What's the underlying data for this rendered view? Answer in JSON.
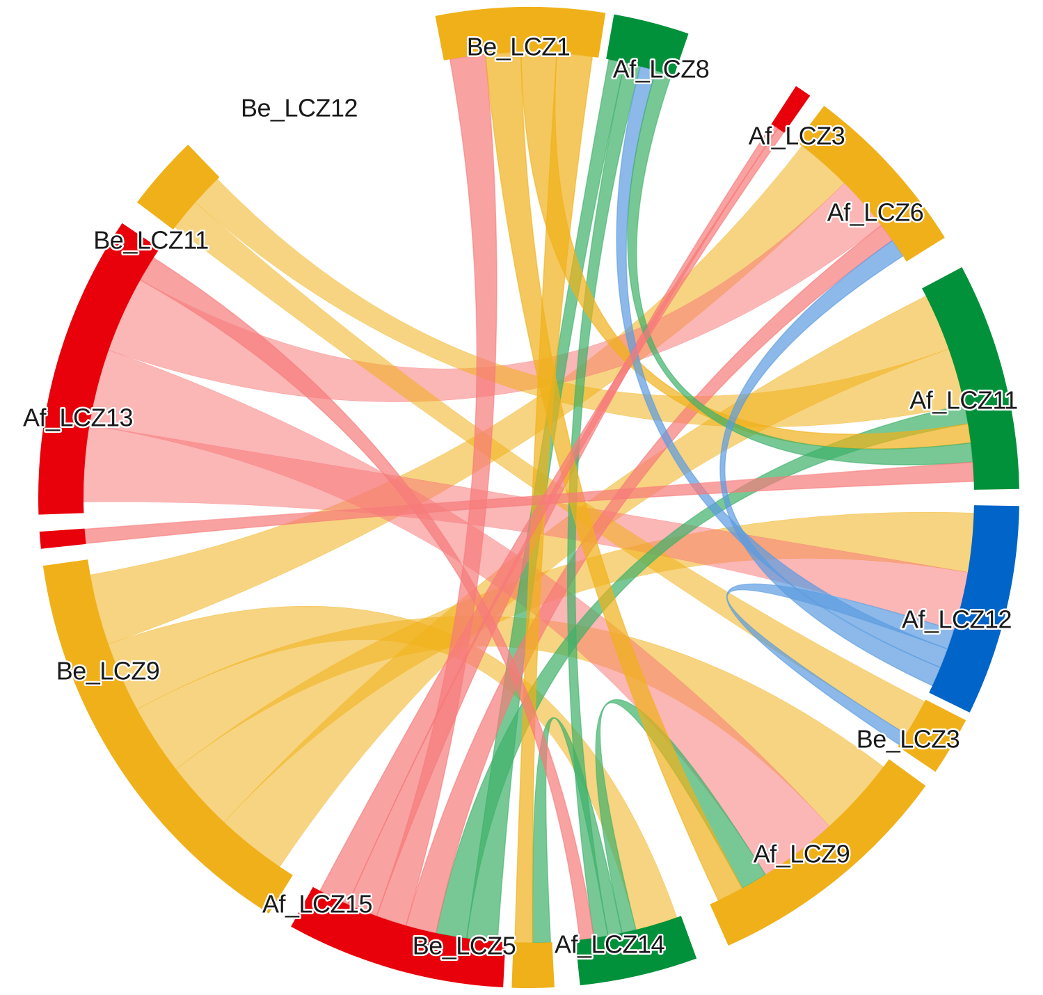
{
  "colors": {
    "red": "#e8000b",
    "green": "#00913a",
    "blue": "#0064c8",
    "yellow": "#f0b019"
  },
  "segments": [
    {
      "id": "Be_LCZ1",
      "label": "Be_LCZ1",
      "color": "#f0b019"
    },
    {
      "id": "Af_LCZ8",
      "label": "Af_LCZ8",
      "color": "#00913a"
    },
    {
      "id": "Af_LCZ3",
      "label": "Af_LCZ3",
      "color": "#e8000b"
    },
    {
      "id": "Af_LCZ6",
      "label": "Af_LCZ6",
      "color": "#f0b019"
    },
    {
      "id": "Af_LCZ11",
      "label": "Af_LCZ11",
      "color": "#00913a"
    },
    {
      "id": "Af_LCZ12",
      "label": "Af_LCZ12",
      "color": "#0064c8"
    },
    {
      "id": "Be_LCZ3",
      "label": "Be_LCZ3",
      "color": "#f0b019"
    },
    {
      "id": "Af_LCZ9",
      "label": "Af_LCZ9",
      "color": "#f0b019"
    },
    {
      "id": "Af_LCZ14",
      "label": "Af_LCZ14",
      "color": "#00913a"
    },
    {
      "id": "Be_LCZ5",
      "label": "Be_LCZ5",
      "color": "#f0b019"
    },
    {
      "id": "Af_LCZ15",
      "label": "Af_LCZ15",
      "color": "#e8000b"
    },
    {
      "id": "Be_LCZ9",
      "label": "Be_LCZ9",
      "color": "#f0b019"
    },
    {
      "id": "Af_LCZ13",
      "label": "Af_LCZ13",
      "color": "#e8000b"
    },
    {
      "id": "Be_LCZ11",
      "label": "Be_LCZ11",
      "color": "#e8000b"
    },
    {
      "id": "Be_LCZ12",
      "label": "Be_LCZ12",
      "color": "#f0b019"
    }
  ],
  "flows": [
    {
      "from": "Be_LCZ9",
      "to": "Af_LCZ11",
      "color": "#f0b019"
    },
    {
      "from": "Be_LCZ9",
      "to": "Af_LCZ12",
      "color": "#f0b019"
    },
    {
      "from": "Be_LCZ9",
      "to": "Af_LCZ9",
      "color": "#f0b019"
    },
    {
      "from": "Be_LCZ9",
      "to": "Af_LCZ14",
      "color": "#f0b019"
    },
    {
      "from": "Be_LCZ9",
      "to": "Af_LCZ6",
      "color": "#f0b019"
    },
    {
      "from": "Be_LCZ11",
      "to": "Af_LCZ12",
      "color": "#f77a7a"
    },
    {
      "from": "Be_LCZ11",
      "to": "Af_LCZ9",
      "color": "#f77a7a"
    },
    {
      "from": "Be_LCZ11",
      "to": "Af_LCZ6",
      "color": "#f77a7a"
    },
    {
      "from": "Be_LCZ12",
      "to": "Be_LCZ3",
      "color": "#f0b019"
    },
    {
      "from": "Be_LCZ12",
      "to": "Af_LCZ11",
      "color": "#f0b019"
    },
    {
      "from": "Af_LCZ12",
      "to": "Be_LCZ3",
      "color": "#5b9be0"
    },
    {
      "from": "Af_LCZ15",
      "to": "Af_LCZ8",
      "color": "#3fb06a"
    },
    {
      "from": "Af_LCZ15",
      "to": "Af_LCZ11",
      "color": "#3fb06a"
    },
    {
      "from": "Af_LCZ15",
      "to": "Af_LCZ6",
      "color": "#f77a7a"
    },
    {
      "from": "Af_LCZ14",
      "to": "Af_LCZ9",
      "color": "#3fb06a"
    },
    {
      "from": "Af_LCZ14",
      "to": "Be_LCZ5",
      "color": "#3fb06a"
    },
    {
      "from": "Af_LCZ15",
      "to": "Be_LCZ1",
      "color": "#f77a7a"
    },
    {
      "from": "Af_LCZ15",
      "to": "Af_LCZ3",
      "color": "#f77a7a"
    },
    {
      "from": "Af_LCZ8",
      "to": "Af_LCZ14",
      "color": "#3fb06a"
    },
    {
      "from": "Af_LCZ9",
      "to": "Be_LCZ1",
      "color": "#f0b019"
    },
    {
      "from": "Be_LCZ1",
      "to": "Af_LCZ11",
      "color": "#f0b019"
    },
    {
      "from": "Be_LCZ5",
      "to": "Be_LCZ1",
      "color": "#f0b019"
    },
    {
      "from": "Af_LCZ12",
      "to": "Af_LCZ8",
      "color": "#5b9be0"
    },
    {
      "from": "Af_LCZ8",
      "to": "Af_LCZ11",
      "color": "#3fb06a"
    },
    {
      "from": "Be_LCZ11",
      "to": "Af_LCZ14",
      "color": "#f77a7a"
    },
    {
      "from": "Af_LCZ13",
      "to": "Af_LCZ11",
      "color": "#f77a7a"
    },
    {
      "from": "Af_LCZ12",
      "to": "Af_LCZ6",
      "color": "#5b9be0"
    },
    {
      "from": "Af_LCZ3",
      "to": "Af_LCZ15",
      "color": "#f77a7a"
    }
  ]
}
